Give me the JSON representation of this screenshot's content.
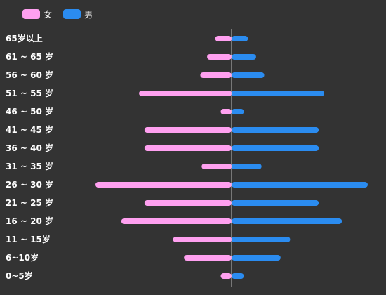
{
  "legend": {
    "female_label": "女",
    "male_label": "男"
  },
  "colors": {
    "background": "#333333",
    "female": "#ffa0f0",
    "male": "#2b8cf0",
    "axis": "#bdbdbd",
    "label": "#ffffff"
  },
  "chart_data": {
    "type": "bar",
    "orientation": "horizontal-diverging",
    "title": "",
    "xlabel": "",
    "ylabel": "",
    "legend_position": "top-left",
    "grid": false,
    "categories": [
      "65岁以上",
      "61 ~ 65 岁",
      "56 ~ 60 岁",
      "51 ~ 55 岁",
      "46 ~ 50 岁",
      "41 ~ 45 岁",
      "36 ~ 40 岁",
      "31 ~ 35 岁",
      "26 ~ 30 岁",
      "21 ~ 25 岁",
      "16 ~ 20 岁",
      "11 ~ 15岁",
      "6~10岁",
      "0~5岁"
    ],
    "xlim": [
      -100,
      100
    ],
    "series": [
      {
        "name": "女",
        "values": [
          12,
          18,
          23,
          68,
          8,
          64,
          64,
          22,
          100,
          64,
          81,
          43,
          35,
          8
        ]
      },
      {
        "name": "男",
        "values": [
          12,
          18,
          24,
          68,
          9,
          64,
          64,
          22,
          100,
          64,
          81,
          43,
          36,
          9
        ]
      }
    ]
  }
}
